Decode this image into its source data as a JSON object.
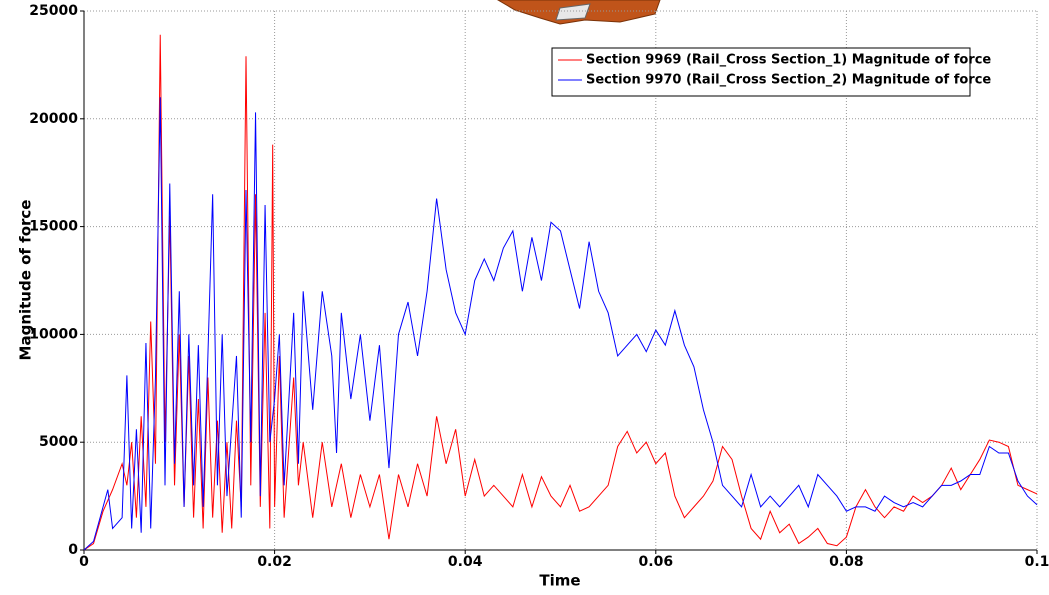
{
  "chart_data": {
    "type": "line",
    "xlabel": "Time",
    "ylabel": "Magnitude of force",
    "xlim": [
      0,
      0.1
    ],
    "xticks": [
      0,
      0.02,
      0.04,
      0.06,
      0.08,
      0.1
    ],
    "ylim": [
      0,
      25000
    ],
    "yticks": [
      0,
      5000,
      10000,
      15000,
      20000,
      25000
    ],
    "grid": true,
    "legend": "upper right",
    "series": [
      {
        "name": "Section 9969 (Rail_Cross Section_1) Magnitude of force",
        "color": "#ff0000",
        "x": [
          0,
          0.001,
          0.002,
          0.003,
          0.004,
          0.0045,
          0.005,
          0.0055,
          0.006,
          0.0065,
          0.007,
          0.0075,
          0.008,
          0.0085,
          0.009,
          0.0095,
          0.01,
          0.0105,
          0.011,
          0.0115,
          0.012,
          0.0125,
          0.013,
          0.0135,
          0.014,
          0.0145,
          0.015,
          0.0155,
          0.016,
          0.0165,
          0.017,
          0.0175,
          0.018,
          0.0185,
          0.019,
          0.0195,
          0.0198,
          0.02,
          0.0205,
          0.021,
          0.022,
          0.0225,
          0.023,
          0.024,
          0.025,
          0.026,
          0.027,
          0.028,
          0.029,
          0.03,
          0.031,
          0.032,
          0.033,
          0.034,
          0.035,
          0.036,
          0.037,
          0.038,
          0.039,
          0.04,
          0.041,
          0.042,
          0.043,
          0.044,
          0.045,
          0.046,
          0.047,
          0.048,
          0.049,
          0.05,
          0.051,
          0.052,
          0.053,
          0.054,
          0.055,
          0.056,
          0.057,
          0.058,
          0.059,
          0.06,
          0.061,
          0.062,
          0.063,
          0.064,
          0.065,
          0.066,
          0.067,
          0.068,
          0.069,
          0.07,
          0.071,
          0.072,
          0.073,
          0.074,
          0.075,
          0.076,
          0.077,
          0.078,
          0.079,
          0.08,
          0.081,
          0.082,
          0.083,
          0.084,
          0.085,
          0.086,
          0.087,
          0.088,
          0.089,
          0.09,
          0.091,
          0.092,
          0.093,
          0.094,
          0.095,
          0.096,
          0.097,
          0.098,
          0.099,
          0.1
        ],
        "values": [
          0,
          300,
          1800,
          2800,
          4000,
          3000,
          5000,
          1500,
          6200,
          2000,
          10600,
          4000,
          23900,
          5000,
          15500,
          3000,
          10000,
          2000,
          9000,
          1500,
          7000,
          1000,
          8000,
          1500,
          6000,
          800,
          5000,
          1000,
          6000,
          2000,
          22900,
          3000,
          16500,
          2000,
          11000,
          1000,
          18800,
          2000,
          9000,
          1500,
          8000,
          3000,
          5000,
          1500,
          5000,
          2000,
          4000,
          1500,
          3500,
          2000,
          3500,
          500,
          3500,
          2000,
          4000,
          2500,
          6200,
          4000,
          5600,
          2500,
          4200,
          2500,
          3000,
          2500,
          2000,
          3500,
          2000,
          3400,
          2500,
          2000,
          3000,
          1800,
          2000,
          2500,
          3000,
          4800,
          5500,
          4500,
          5000,
          4000,
          4500,
          2500,
          1500,
          2000,
          2500,
          3200,
          4800,
          4200,
          2500,
          1000,
          500,
          1800,
          800,
          1200,
          300,
          600,
          1000,
          300,
          200,
          600,
          2000,
          2800,
          2000,
          1500,
          2000,
          1800,
          2500,
          2200,
          2500,
          3000,
          3800,
          2800,
          3500,
          4200,
          5100,
          5000,
          4800,
          3000,
          2800,
          2600
        ]
      },
      {
        "name": "Section 9970 (Rail_Cross Section_2) Magnitude of force",
        "color": "#0000ff",
        "x": [
          0,
          0.001,
          0.002,
          0.0025,
          0.003,
          0.004,
          0.0045,
          0.005,
          0.0055,
          0.006,
          0.0065,
          0.007,
          0.0075,
          0.008,
          0.0085,
          0.009,
          0.0095,
          0.01,
          0.0105,
          0.011,
          0.0115,
          0.012,
          0.0125,
          0.013,
          0.0135,
          0.014,
          0.0145,
          0.015,
          0.016,
          0.0165,
          0.017,
          0.0175,
          0.018,
          0.0185,
          0.019,
          0.0195,
          0.02,
          0.0205,
          0.021,
          0.022,
          0.0225,
          0.023,
          0.024,
          0.025,
          0.026,
          0.0265,
          0.027,
          0.028,
          0.029,
          0.03,
          0.031,
          0.032,
          0.033,
          0.034,
          0.035,
          0.036,
          0.037,
          0.038,
          0.039,
          0.04,
          0.041,
          0.042,
          0.043,
          0.044,
          0.045,
          0.046,
          0.047,
          0.048,
          0.049,
          0.05,
          0.051,
          0.052,
          0.053,
          0.054,
          0.055,
          0.056,
          0.057,
          0.058,
          0.059,
          0.06,
          0.061,
          0.062,
          0.063,
          0.064,
          0.065,
          0.066,
          0.067,
          0.068,
          0.069,
          0.07,
          0.071,
          0.072,
          0.073,
          0.074,
          0.075,
          0.076,
          0.077,
          0.078,
          0.079,
          0.08,
          0.081,
          0.082,
          0.083,
          0.084,
          0.085,
          0.086,
          0.087,
          0.088,
          0.089,
          0.09,
          0.091,
          0.092,
          0.093,
          0.094,
          0.095,
          0.096,
          0.097,
          0.098,
          0.099,
          0.1
        ],
        "values": [
          0,
          400,
          2000,
          2800,
          1000,
          1500,
          8100,
          1000,
          5600,
          800,
          9600,
          1000,
          8000,
          21000,
          3000,
          17000,
          4000,
          12000,
          2000,
          10000,
          3000,
          9500,
          2000,
          9000,
          16500,
          3000,
          10000,
          2500,
          9000,
          1500,
          16700,
          5000,
          20300,
          2500,
          16000,
          5000,
          7000,
          10000,
          3000,
          11000,
          4000,
          12000,
          6500,
          12000,
          9000,
          4500,
          11000,
          7000,
          10000,
          6000,
          9500,
          3800,
          10000,
          11500,
          9000,
          12000,
          16300,
          13000,
          11000,
          10000,
          12500,
          13500,
          12500,
          14000,
          14800,
          12000,
          14500,
          12500,
          15200,
          14800,
          13000,
          11200,
          14300,
          12000,
          11000,
          9000,
          9500,
          10000,
          9200,
          10200,
          9500,
          11100,
          9500,
          8500,
          6500,
          5000,
          3000,
          2500,
          2000,
          3500,
          2000,
          2500,
          2000,
          2500,
          3000,
          2000,
          3500,
          3000,
          2500,
          1800,
          2000,
          2000,
          1800,
          2500,
          2200,
          2000,
          2200,
          2000,
          2500,
          3000,
          3000,
          3200,
          3500,
          3500,
          4800,
          4500,
          4500,
          3200,
          2500,
          2100
        ]
      }
    ]
  }
}
